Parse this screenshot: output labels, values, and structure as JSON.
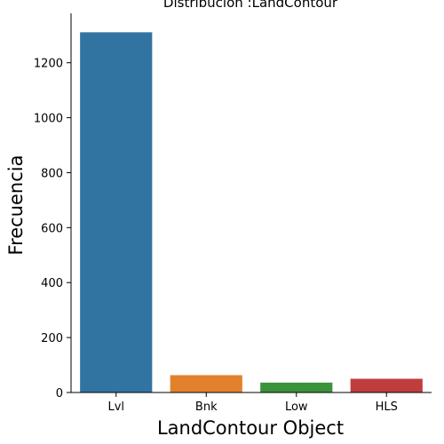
{
  "chart_data": {
    "type": "bar",
    "title": "Distribución :LandContour",
    "xlabel": "LandContour Object",
    "ylabel": "Frecuencia",
    "categories": [
      "Lvl",
      "Bnk",
      "Low",
      "HLS"
    ],
    "values": [
      1311,
      63,
      36,
      50
    ],
    "colors": [
      "#3274a1",
      "#e1812c",
      "#3a923a",
      "#c03d3e"
    ],
    "ylim": [
      0,
      1380
    ],
    "yticks": [
      0,
      200,
      400,
      600,
      800,
      1000,
      1200
    ],
    "grid": false,
    "legend": "none"
  }
}
